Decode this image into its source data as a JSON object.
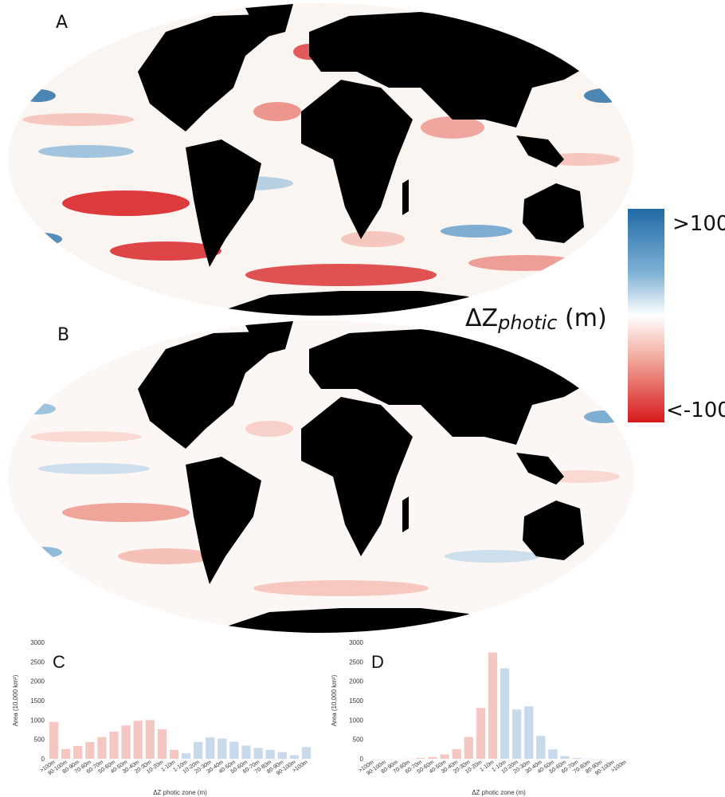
{
  "panels": {
    "a": "A",
    "b": "B",
    "c": "C",
    "d": "D"
  },
  "colorbar": {
    "max_label": ">100",
    "min_label": "<-100",
    "title_prefix": "ΔZ",
    "title_sub": "photic",
    "title_unit": "(m)",
    "colors": [
      "#1f6aa5",
      "#7fb2d6",
      "#ffffff",
      "#f2a99d",
      "#d7191c"
    ]
  },
  "chart_data": [
    {
      "panel": "C",
      "type": "bar",
      "xlabel": "ΔZ photic zone (m)",
      "ylabel": "Area (10,000 km²)",
      "ylim": [
        0,
        3000
      ],
      "yticks": [
        0,
        500,
        1000,
        1500,
        2000,
        2500,
        3000
      ],
      "categories": [
        ">100m",
        "90-100m",
        "80-90m",
        "70-80m",
        "60-70m",
        "50-60m",
        "40-50m",
        "30-40m",
        "20-30m",
        "10-20m",
        "1-10m",
        "1-10m",
        "10-20m",
        "20-30m",
        "30-40m",
        "40-50m",
        "50-60m",
        "60-70m",
        "70-80m",
        "80-90m",
        "90-100m",
        ">100m"
      ],
      "values": [
        950,
        250,
        330,
        430,
        560,
        700,
        860,
        980,
        1000,
        760,
        230,
        140,
        430,
        550,
        520,
        440,
        340,
        280,
        230,
        170,
        90,
        300
      ],
      "colors": [
        "#f4c7c3",
        "#f4c7c3",
        "#f4c7c3",
        "#f4c7c3",
        "#f4c7c3",
        "#f4c7c3",
        "#f4c7c3",
        "#f4c7c3",
        "#f4c7c3",
        "#f4c7c3",
        "#f4c7c3",
        "#c8d9ec",
        "#c8d9ec",
        "#c8d9ec",
        "#c8d9ec",
        "#c8d9ec",
        "#c8d9ec",
        "#c8d9ec",
        "#c8d9ec",
        "#c8d9ec",
        "#c8d9ec",
        "#c8d9ec"
      ]
    },
    {
      "panel": "D",
      "type": "bar",
      "xlabel": "ΔZ photic zone (m)",
      "ylabel": "Area (10,000 km²)",
      "ylim": [
        0,
        3000
      ],
      "yticks": [
        0,
        500,
        1000,
        1500,
        2000,
        2500,
        3000
      ],
      "categories": [
        ">100m",
        "90-100m",
        "80-90m",
        "70-80m",
        "60-70m",
        "50-60m",
        "40-50m",
        "30-40m",
        "20-30m",
        "10-20m",
        "1-10m",
        "1-10m",
        "10-20m",
        "20-30m",
        "30-40m",
        "40-50m",
        "50-60m",
        "60-70m",
        "70-80m",
        "80-90m",
        "90-100m",
        ">100m"
      ],
      "values": [
        0,
        0,
        0,
        5,
        20,
        45,
        110,
        250,
        560,
        1310,
        2740,
        2330,
        1270,
        1350,
        590,
        240,
        70,
        20,
        5,
        0,
        0,
        0
      ],
      "colors": [
        "#f4c7c3",
        "#f4c7c3",
        "#f4c7c3",
        "#f4c7c3",
        "#f4c7c3",
        "#f4c7c3",
        "#f4c7c3",
        "#f4c7c3",
        "#f4c7c3",
        "#f4c7c3",
        "#f4c7c3",
        "#c8d9ec",
        "#c8d9ec",
        "#c8d9ec",
        "#c8d9ec",
        "#c8d9ec",
        "#c8d9ec",
        "#c8d9ec",
        "#c8d9ec",
        "#c8d9ec",
        "#c8d9ec",
        "#c8d9ec"
      ]
    }
  ]
}
